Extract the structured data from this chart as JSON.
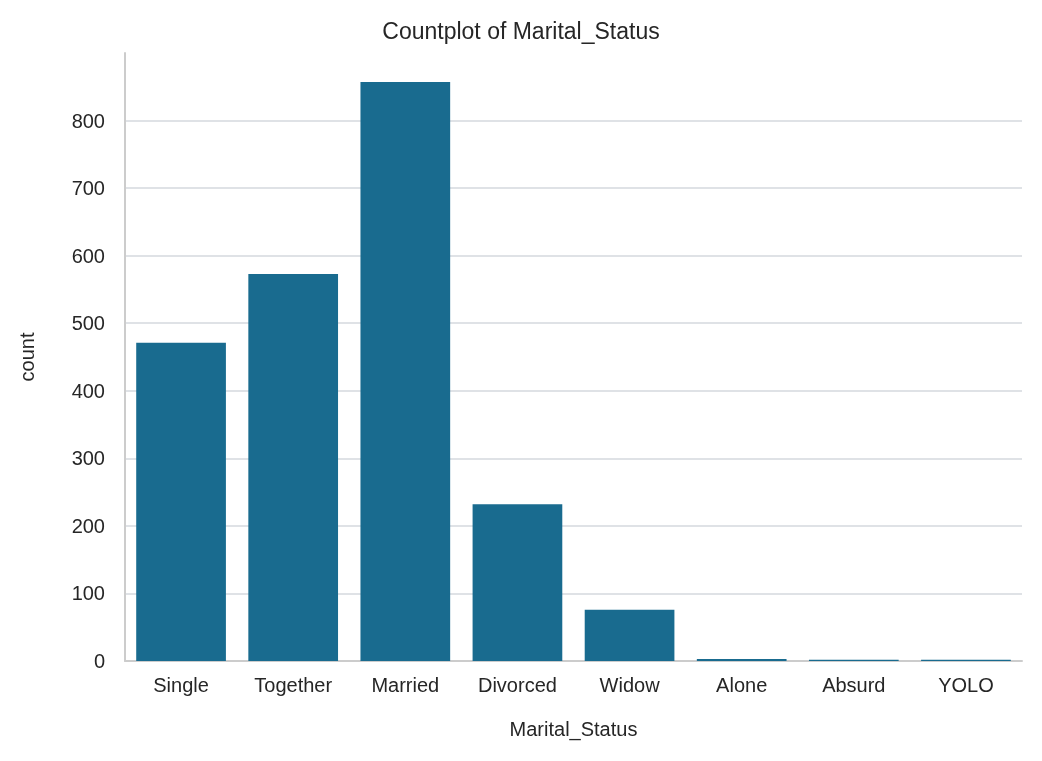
{
  "chart_data": {
    "type": "bar",
    "title": "Countplot of Marital_Status",
    "xlabel": "Marital_Status",
    "ylabel": "count",
    "categories": [
      "Single",
      "Together",
      "Married",
      "Divorced",
      "Widow",
      "Alone",
      "Absurd",
      "YOLO"
    ],
    "values": [
      471,
      573,
      857,
      232,
      76,
      3,
      2,
      2
    ],
    "color": "#196b8f",
    "ylim": [
      0,
      900
    ],
    "yticks": [
      0,
      100,
      200,
      300,
      400,
      500,
      600,
      700,
      800
    ],
    "grid": "y"
  }
}
